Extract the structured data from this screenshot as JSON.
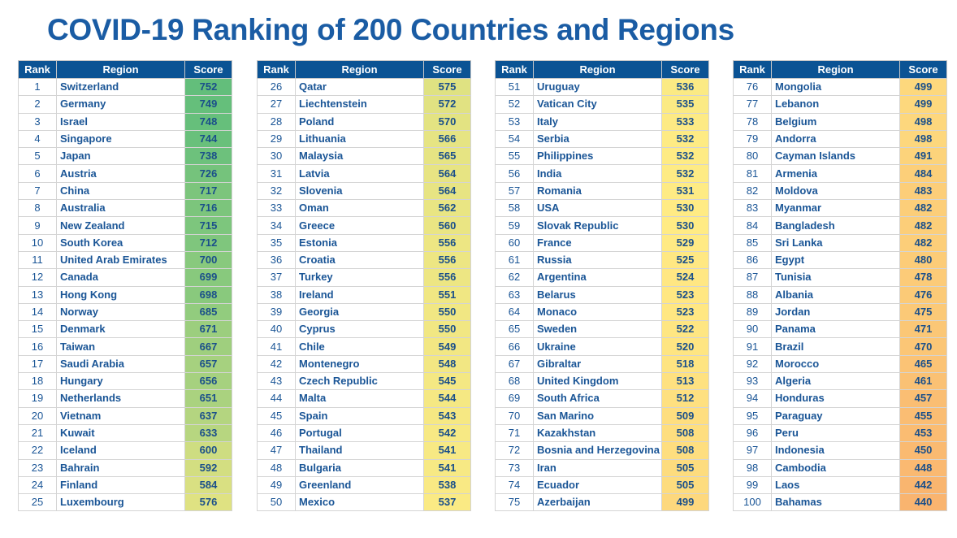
{
  "title": "COVID-19 Ranking of 200 Countries and Regions",
  "headers": {
    "rank": "Rank",
    "region": "Region",
    "score": "Score"
  },
  "color_scale": {
    "high": "#63be7b",
    "mid": "#ffeb84",
    "low": "#f9b46f"
  },
  "tables": [
    [
      [
        1,
        "Switzerland",
        752
      ],
      [
        2,
        "Germany",
        749
      ],
      [
        3,
        "Israel",
        748
      ],
      [
        4,
        "Singapore",
        744
      ],
      [
        5,
        "Japan",
        738
      ],
      [
        6,
        "Austria",
        726
      ],
      [
        7,
        "China",
        717
      ],
      [
        8,
        "Australia",
        716
      ],
      [
        9,
        "New Zealand",
        715
      ],
      [
        10,
        "South Korea",
        712
      ],
      [
        11,
        "United Arab Emirates",
        700
      ],
      [
        12,
        "Canada",
        699
      ],
      [
        13,
        "Hong Kong",
        698
      ],
      [
        14,
        "Norway",
        685
      ],
      [
        15,
        "Denmark",
        671
      ],
      [
        16,
        "Taiwan",
        667
      ],
      [
        17,
        "Saudi Arabia",
        657
      ],
      [
        18,
        "Hungary",
        656
      ],
      [
        19,
        "Netherlands",
        651
      ],
      [
        20,
        "Vietnam",
        637
      ],
      [
        21,
        "Kuwait",
        633
      ],
      [
        22,
        "Iceland",
        600
      ],
      [
        23,
        "Bahrain",
        592
      ],
      [
        24,
        "Finland",
        584
      ],
      [
        25,
        "Luxembourg",
        576
      ]
    ],
    [
      [
        26,
        "Qatar",
        575
      ],
      [
        27,
        "Liechtenstein",
        572
      ],
      [
        28,
        "Poland",
        570
      ],
      [
        29,
        "Lithuania",
        566
      ],
      [
        30,
        "Malaysia",
        565
      ],
      [
        31,
        "Latvia",
        564
      ],
      [
        32,
        "Slovenia",
        564
      ],
      [
        33,
        "Oman",
        562
      ],
      [
        34,
        "Greece",
        560
      ],
      [
        35,
        "Estonia",
        556
      ],
      [
        36,
        "Croatia",
        556
      ],
      [
        37,
        "Turkey",
        556
      ],
      [
        38,
        "Ireland",
        551
      ],
      [
        39,
        "Georgia",
        550
      ],
      [
        40,
        "Cyprus",
        550
      ],
      [
        41,
        "Chile",
        549
      ],
      [
        42,
        "Montenegro",
        548
      ],
      [
        43,
        "Czech Republic",
        545
      ],
      [
        44,
        "Malta",
        544
      ],
      [
        45,
        "Spain",
        543
      ],
      [
        46,
        "Portugal",
        542
      ],
      [
        47,
        "Thailand",
        541
      ],
      [
        48,
        "Bulgaria",
        541
      ],
      [
        49,
        "Greenland",
        538
      ],
      [
        50,
        "Mexico",
        537
      ]
    ],
    [
      [
        51,
        "Uruguay",
        536
      ],
      [
        52,
        "Vatican City",
        535
      ],
      [
        53,
        "Italy",
        533
      ],
      [
        54,
        "Serbia",
        532
      ],
      [
        55,
        "Philippines",
        532
      ],
      [
        56,
        "India",
        532
      ],
      [
        57,
        "Romania",
        531
      ],
      [
        58,
        "USA",
        530
      ],
      [
        59,
        "Slovak Republic",
        530
      ],
      [
        60,
        "France",
        529
      ],
      [
        61,
        "Russia",
        525
      ],
      [
        62,
        "Argentina",
        524
      ],
      [
        63,
        "Belarus",
        523
      ],
      [
        64,
        "Monaco",
        523
      ],
      [
        65,
        "Sweden",
        522
      ],
      [
        66,
        "Ukraine",
        520
      ],
      [
        67,
        "Gibraltar",
        518
      ],
      [
        68,
        "United Kingdom",
        513
      ],
      [
        69,
        "South Africa",
        512
      ],
      [
        70,
        "San Marino",
        509
      ],
      [
        71,
        "Kazakhstan",
        508
      ],
      [
        72,
        "Bosnia and Herzegovina",
        508
      ],
      [
        73,
        "Iran",
        505
      ],
      [
        74,
        "Ecuador",
        505
      ],
      [
        75,
        "Azerbaijan",
        499
      ]
    ],
    [
      [
        76,
        "Mongolia",
        499
      ],
      [
        77,
        "Lebanon",
        499
      ],
      [
        78,
        "Belgium",
        498
      ],
      [
        79,
        "Andorra",
        498
      ],
      [
        80,
        "Cayman Islands",
        491
      ],
      [
        81,
        "Armenia",
        484
      ],
      [
        82,
        "Moldova",
        483
      ],
      [
        83,
        "Myanmar",
        482
      ],
      [
        84,
        "Bangladesh",
        482
      ],
      [
        85,
        "Sri Lanka",
        482
      ],
      [
        86,
        "Egypt",
        480
      ],
      [
        87,
        "Tunisia",
        478
      ],
      [
        88,
        "Albania",
        476
      ],
      [
        89,
        "Jordan",
        475
      ],
      [
        90,
        "Panama",
        471
      ],
      [
        91,
        "Brazil",
        470
      ],
      [
        92,
        "Morocco",
        465
      ],
      [
        93,
        "Algeria",
        461
      ],
      [
        94,
        "Honduras",
        457
      ],
      [
        95,
        "Paraguay",
        455
      ],
      [
        96,
        "Peru",
        453
      ],
      [
        97,
        "Indonesia",
        450
      ],
      [
        98,
        "Cambodia",
        448
      ],
      [
        99,
        "Laos",
        442
      ],
      [
        100,
        "Bahamas",
        440
      ]
    ]
  ]
}
